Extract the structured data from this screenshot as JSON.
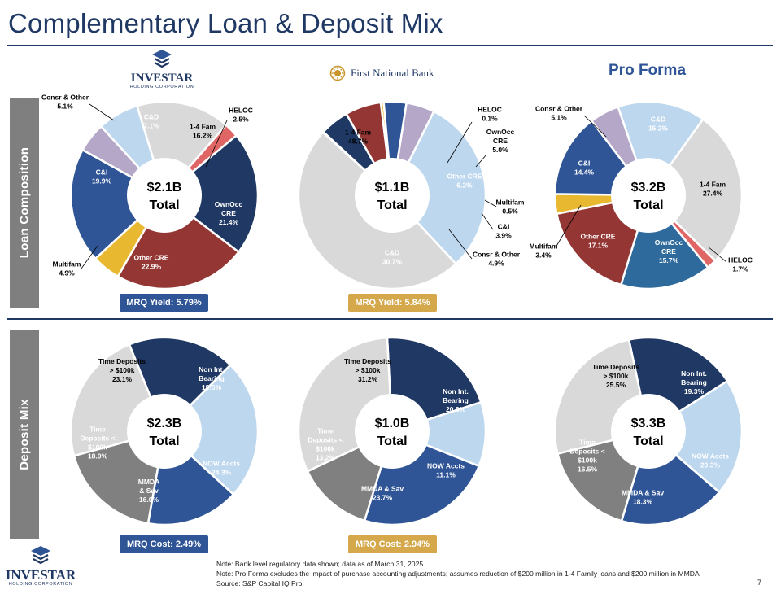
{
  "title": "Complementary Loan & Deposit Mix",
  "section_labels": {
    "loan": "Loan Composition",
    "deposit": "Deposit Mix"
  },
  "logos": {
    "investar_name": "INVESTAR",
    "investar_sub": "HOLDING CORPORATION",
    "fnb_name": "First National Bank"
  },
  "pro_forma_label": "Pro Forma",
  "badges": {
    "investar_loan": "MRQ Yield: 5.79%",
    "fnb_loan": "MRQ Yield: 5.84%",
    "investar_deposit": "MRQ Cost: 2.49%",
    "fnb_deposit": "MRQ Cost: 2.94%"
  },
  "notes": [
    "Note: Bank level regulatory data shown; data as of March 31, 2025",
    "Note: Pro Forma excludes the impact of purchase accounting adjustments; assumes reduction of $200 million in 1-4 Family loans and $200 million in MMDA",
    "Source: S&P Capital IQ Pro"
  ],
  "page_number": "7",
  "colors": {
    "navy": "#1f3864",
    "grey_light": "#d9d9d9",
    "red": "#e06666",
    "red_dark": "#943634",
    "yellow": "#e8b930",
    "blue_mid": "#2f5597",
    "lavender": "#b4a7c8",
    "light_blue": "#bdd7ee",
    "teal_blue": "#2e6a9c",
    "grey_mid": "#808080"
  },
  "chart_data": [
    {
      "type": "pie",
      "id": "investar_loan",
      "center_label": [
        "$2.1B",
        "Total"
      ],
      "slices": [
        {
          "label": "1-4 Fam",
          "value": 16.2,
          "color": "#d9d9d9"
        },
        {
          "label": "HELOC",
          "value": 2.5,
          "color": "#e06666"
        },
        {
          "label": "OwnOcc CRE",
          "value": 21.4,
          "color": "#1f3864"
        },
        {
          "label": "Other CRE",
          "value": 22.9,
          "color": "#943634"
        },
        {
          "label": "Multifam",
          "value": 4.9,
          "color": "#e8b930"
        },
        {
          "label": "C&I",
          "value": 19.9,
          "color": "#2f5597"
        },
        {
          "label": "Consr & Other",
          "value": 5.1,
          "color": "#b4a7c8"
        },
        {
          "label": "C&D",
          "value": 7.1,
          "color": "#bdd7ee"
        }
      ]
    },
    {
      "type": "pie",
      "id": "fnb_loan",
      "center_label": [
        "$1.1B",
        "Total"
      ],
      "slices": [
        {
          "label": "1-4 Fam",
          "value": 48.7,
          "color": "#d9d9d9"
        },
        {
          "label": "HELOC",
          "value": 0.1,
          "color": "#e06666"
        },
        {
          "label": "OwnOcc CRE",
          "value": 5.0,
          "color": "#1f3864"
        },
        {
          "label": "Other CRE",
          "value": 6.2,
          "color": "#943634"
        },
        {
          "label": "Multifam",
          "value": 0.5,
          "color": "#e8b930"
        },
        {
          "label": "C&I",
          "value": 3.9,
          "color": "#2f5597"
        },
        {
          "label": "Consr & Other",
          "value": 4.9,
          "color": "#b4a7c8"
        },
        {
          "label": "C&D",
          "value": 30.7,
          "color": "#bdd7ee"
        }
      ]
    },
    {
      "type": "pie",
      "id": "proforma_loan",
      "center_label": [
        "$3.2B",
        "Total"
      ],
      "slices": [
        {
          "label": "C&D",
          "value": 15.2,
          "color": "#bdd7ee"
        },
        {
          "label": "1-4 Fam",
          "value": 27.4,
          "color": "#d9d9d9"
        },
        {
          "label": "HELOC",
          "value": 1.7,
          "color": "#e06666"
        },
        {
          "label": "OwnOcc CRE",
          "value": 15.7,
          "color": "#2e6a9c"
        },
        {
          "label": "Other CRE",
          "value": 17.1,
          "color": "#943634"
        },
        {
          "label": "Multifam",
          "value": 3.4,
          "color": "#e8b930"
        },
        {
          "label": "C&I",
          "value": 14.4,
          "color": "#2f5597"
        },
        {
          "label": "Consr & Other",
          "value": 5.1,
          "color": "#b4a7c8"
        }
      ]
    },
    {
      "type": "pie",
      "id": "investar_deposit",
      "center_label": [
        "$2.3B",
        "Total"
      ],
      "slices": [
        {
          "label": "Non Int. Bearing",
          "value": 18.6,
          "color": "#1f3864"
        },
        {
          "label": "NOW Accts",
          "value": 24.3,
          "color": "#bdd7ee"
        },
        {
          "label": "MMDA & Sav",
          "value": 16.0,
          "color": "#2f5597"
        },
        {
          "label": "Time Deposits < $100k",
          "value": 18.0,
          "color": "#808080"
        },
        {
          "label": "Time Deposits > $100k",
          "value": 23.1,
          "color": "#d9d9d9"
        }
      ]
    },
    {
      "type": "pie",
      "id": "fnb_deposit",
      "center_label": [
        "$1.0B",
        "Total"
      ],
      "slices": [
        {
          "label": "Non Int. Bearing",
          "value": 20.8,
          "color": "#1f3864"
        },
        {
          "label": "NOW Accts",
          "value": 11.1,
          "color": "#bdd7ee"
        },
        {
          "label": "MMDA & Sav",
          "value": 23.7,
          "color": "#2f5597"
        },
        {
          "label": "Time Deposits < $100k",
          "value": 13.2,
          "color": "#808080"
        },
        {
          "label": "Time Deposits > $100k",
          "value": 31.2,
          "color": "#d9d9d9"
        }
      ]
    },
    {
      "type": "pie",
      "id": "proforma_deposit",
      "center_label": [
        "$3.3B",
        "Total"
      ],
      "slices": [
        {
          "label": "Non Int. Bearing",
          "value": 19.3,
          "color": "#1f3864"
        },
        {
          "label": "NOW Accts",
          "value": 20.3,
          "color": "#bdd7ee"
        },
        {
          "label": "MMDA & Sav",
          "value": 18.3,
          "color": "#2f5597"
        },
        {
          "label": "Time Deposits < $100k",
          "value": 16.5,
          "color": "#808080"
        },
        {
          "label": "Time Deposits > $100k",
          "value": 25.5,
          "color": "#d9d9d9"
        }
      ]
    }
  ]
}
